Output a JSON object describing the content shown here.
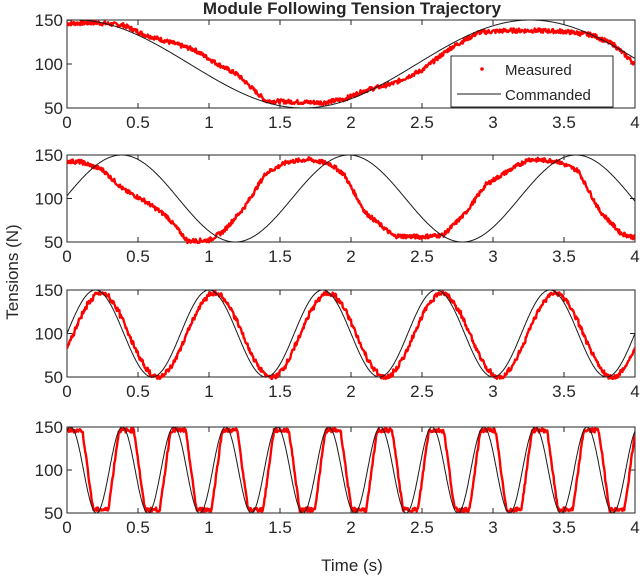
{
  "figure_title": "Module Following Tension Trajectory",
  "ylabel": "Tensions (N)",
  "xlabel": "Time (s)",
  "legend": {
    "measured_label": "Measured",
    "commanded_label": "Commanded",
    "placement": "top-right of first panel"
  },
  "colors": {
    "measured": "#ff0000",
    "commanded": "#1a1a1a",
    "axis": "#262626"
  },
  "chart_data": [
    {
      "type": "line",
      "title": "Module Following Tension Trajectory",
      "xlim": [
        0,
        4
      ],
      "ylim": [
        50,
        150
      ],
      "xticks": [
        0,
        0.5,
        1,
        1.5,
        2,
        2.5,
        3,
        3.5,
        4
      ],
      "xtick_labels": [
        "0",
        "0.5",
        "1",
        "1.5",
        "2",
        "2.5",
        "3",
        "3.5",
        "4"
      ],
      "yticks": [
        50,
        100,
        150
      ],
      "ytick_labels": [
        "50",
        "100",
        "150"
      ],
      "commanded": {
        "form": "sinusoid",
        "center": 100,
        "amplitude": 50,
        "frequency_hz": 0.3125,
        "phase_cycles": 0.23
      },
      "measured": {
        "x": [
          0,
          0.2,
          0.4,
          0.55,
          0.7,
          0.9,
          1.05,
          1.2,
          1.4,
          1.6,
          1.8,
          1.95,
          2.1,
          2.3,
          2.5,
          2.7,
          2.9,
          3.1,
          3.3,
          3.5,
          3.7,
          3.85,
          4.0
        ],
        "y": [
          146,
          147,
          144,
          133,
          126,
          116,
          101,
          88,
          58,
          57,
          56,
          60,
          70,
          78,
          93,
          118,
          136,
          138,
          138,
          137,
          133,
          122,
          100
        ]
      },
      "series": [
        {
          "name": "Measured"
        },
        {
          "name": "Commanded"
        }
      ],
      "legend": true
    },
    {
      "type": "line",
      "xlim": [
        0,
        4
      ],
      "ylim": [
        50,
        150
      ],
      "xticks": [
        0,
        0.5,
        1,
        1.5,
        2,
        2.5,
        3,
        3.5,
        4
      ],
      "xtick_labels": [
        "0",
        "0.5",
        "1",
        "1.5",
        "2",
        "2.5",
        "3",
        "3.5",
        "4"
      ],
      "yticks": [
        50,
        100,
        150
      ],
      "ytick_labels": [
        "50",
        "100",
        "150"
      ],
      "commanded": {
        "form": "sinusoid",
        "center": 100,
        "amplitude": 50,
        "frequency_hz": 0.625,
        "phase_cycles": 0.01
      },
      "measured": {
        "x": [
          0,
          0.1,
          0.25,
          0.4,
          0.55,
          0.7,
          0.85,
          1.0,
          1.1,
          1.25,
          1.4,
          1.55,
          1.7,
          1.85,
          1.95,
          2.1,
          2.3,
          2.5,
          2.65,
          2.8,
          2.95,
          3.1,
          3.25,
          3.45,
          3.6,
          3.75,
          3.9,
          4.0
        ],
        "y": [
          143,
          142,
          133,
          110,
          97,
          80,
          51,
          52,
          62,
          90,
          129,
          142,
          145,
          140,
          128,
          84,
          57,
          56,
          58,
          82,
          116,
          131,
          145,
          143,
          132,
          86,
          60,
          55
        ]
      }
    },
    {
      "type": "line",
      "xlim": [
        0,
        4
      ],
      "ylim": [
        50,
        150
      ],
      "xticks": [
        0,
        0.5,
        1,
        1.5,
        2,
        2.5,
        3,
        3.5,
        4
      ],
      "xtick_labels": [
        "0",
        "0.5",
        "1",
        "1.5",
        "2",
        "2.5",
        "3",
        "3.5",
        "4"
      ],
      "yticks": [
        50,
        100,
        150
      ],
      "ytick_labels": [
        "50",
        "100",
        "150"
      ],
      "commanded": {
        "form": "sinusoid",
        "center": 100,
        "amplitude": 50,
        "frequency_hz": 1.25,
        "phase_cycles": 0.0
      },
      "measured_model": {
        "form": "lagged-sinusoid",
        "center": 98,
        "amplitude": 48,
        "frequency_hz": 1.25,
        "lag_s": 0.04
      }
    },
    {
      "type": "line",
      "xlim": [
        0,
        4
      ],
      "ylim": [
        50,
        150
      ],
      "xticks": [
        0,
        0.5,
        1,
        1.5,
        2,
        2.5,
        3,
        3.5,
        4
      ],
      "xtick_labels": [
        "0",
        "0.5",
        "1",
        "1.5",
        "2",
        "2.5",
        "3",
        "3.5",
        "4"
      ],
      "yticks": [
        50,
        100,
        150
      ],
      "ytick_labels": [
        "50",
        "100",
        "150"
      ],
      "commanded": {
        "form": "sinusoid",
        "center": 100,
        "amplitude": 50,
        "frequency_hz": 2.75,
        "phase_cycles": 0.18
      },
      "measured_model": {
        "form": "saturated-sinusoid",
        "center": 100,
        "amplitude": 48,
        "frequency_hz": 2.75,
        "lag_s": 0.03
      }
    }
  ]
}
